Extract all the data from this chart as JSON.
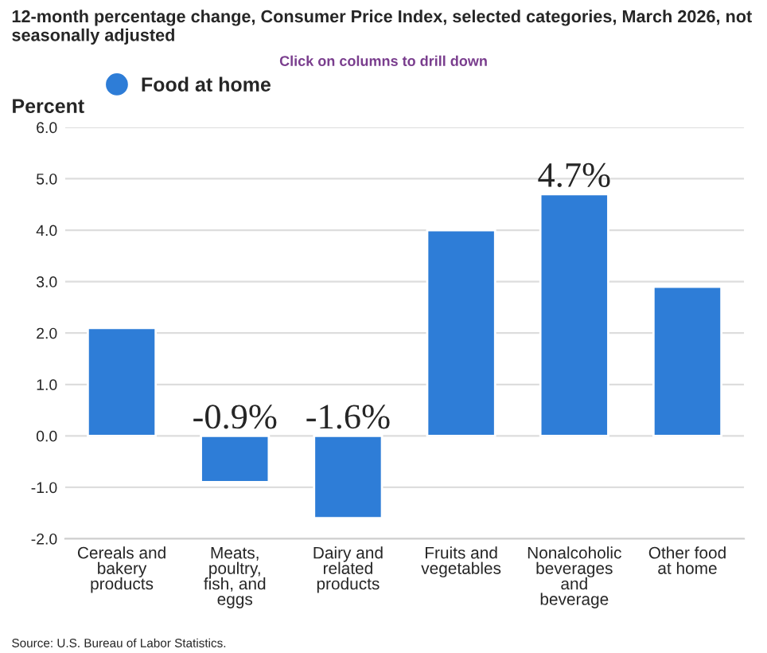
{
  "chart_data": {
    "type": "bar",
    "title": "12-month percentage change, Consumer Price Index, selected categories, March 2026, not seasonally adjusted",
    "ylabel": "Percent",
    "categories": [
      "Cereals and\nbakery\nproducts",
      "Meats,\npoultry,\nfish, and\neggs",
      "Dairy and\nrelated\nproducts",
      "Fruits and\nvegetables",
      "Nonalcoholic\nbeverages\nand\nbeverage",
      "Other food\nat home"
    ],
    "series": [
      {
        "name": "Food at home",
        "color": "#2e7dd7",
        "values": [
          2.1,
          -0.9,
          -1.6,
          4.0,
          4.7,
          2.9
        ],
        "value_labels": [
          null,
          "-0.9%",
          "-1.6%",
          null,
          "4.7%",
          null
        ]
      }
    ],
    "ylim": [
      -2.0,
      6.0
    ],
    "yticks": [
      {
        "value": -2,
        "label": "-2.0"
      },
      {
        "value": -1,
        "label": "-1.0"
      },
      {
        "value": 0,
        "label": "0.0"
      },
      {
        "value": 1,
        "label": "1.0"
      },
      {
        "value": 2,
        "label": "2.0"
      },
      {
        "value": 3,
        "label": "3.0"
      },
      {
        "value": 4,
        "label": "4.0"
      },
      {
        "value": 5,
        "label": "5.0"
      },
      {
        "value": 6,
        "label": "6.0"
      }
    ],
    "grid": "y",
    "legend": "top left",
    "marker": "circle",
    "annotations": [
      "Click on columns to drill down",
      "Source: U.S. Bureau of Labor Statistics."
    ]
  }
}
